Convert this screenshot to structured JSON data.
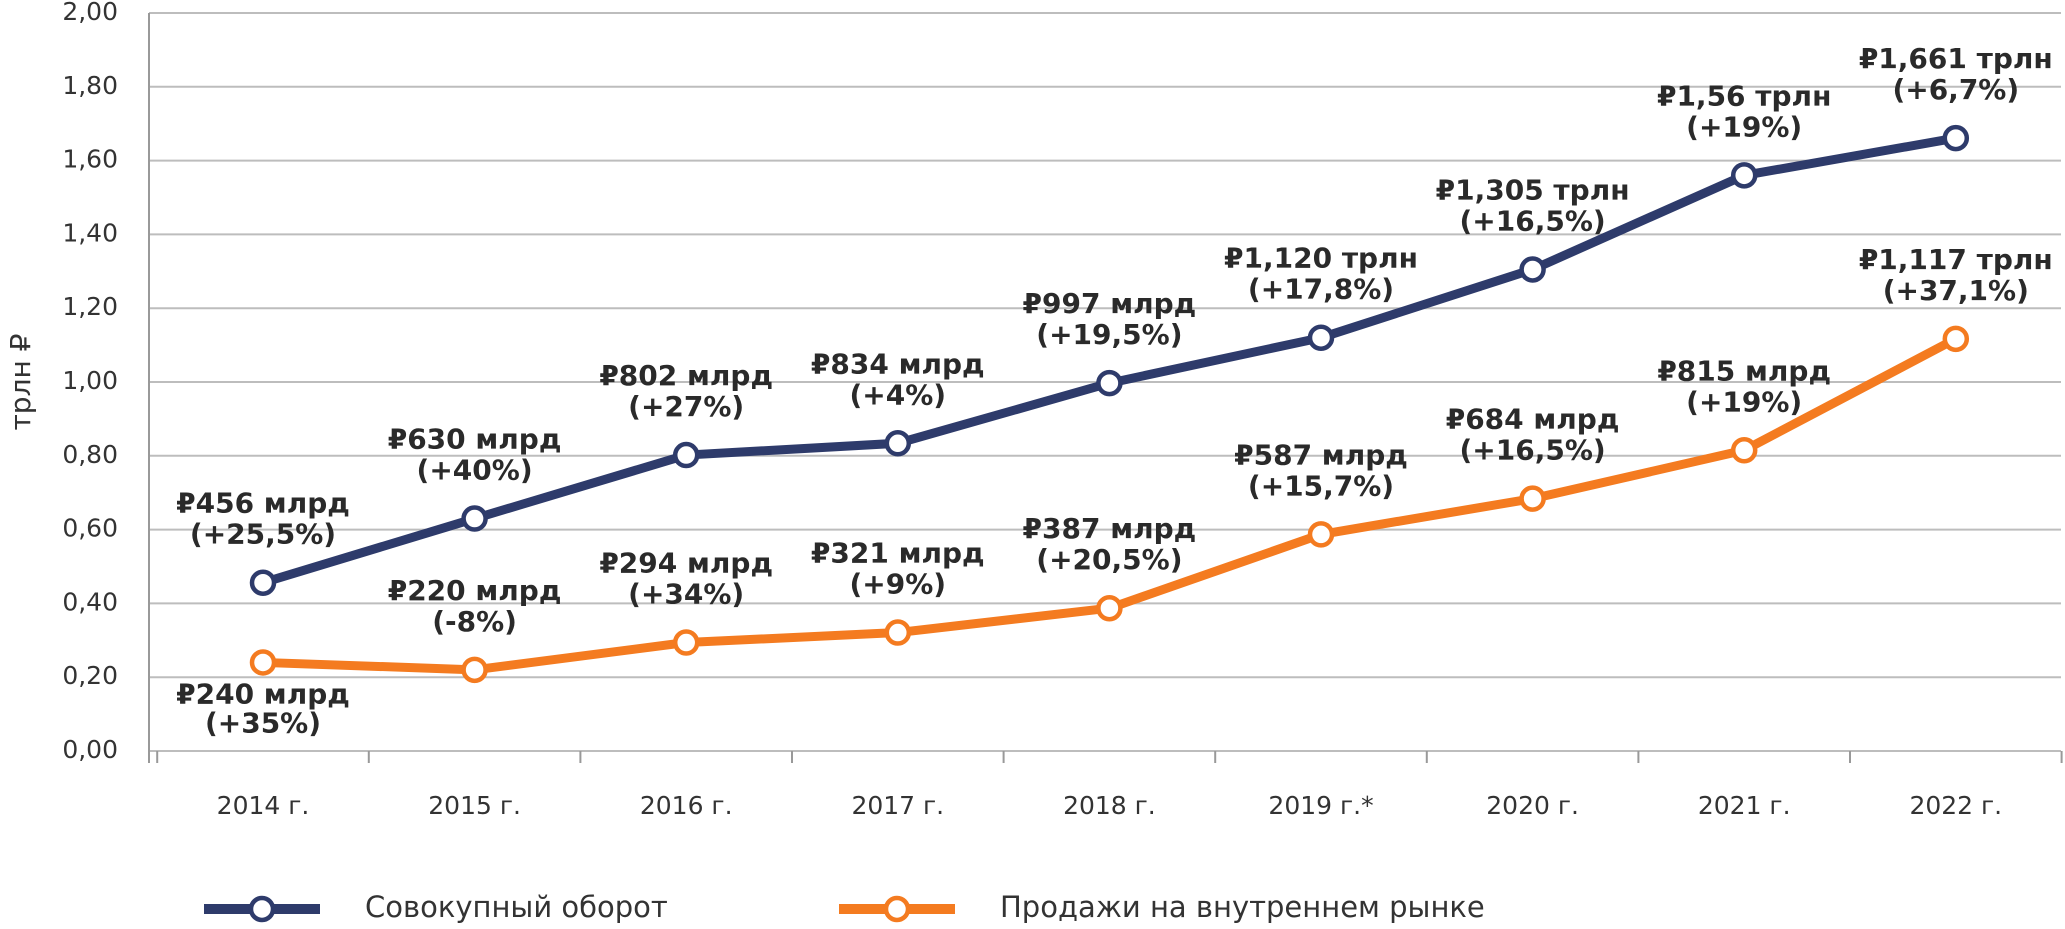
{
  "chart_data": {
    "type": "line",
    "y_label": "трлн ₽",
    "categories": [
      "2014 г.",
      "2015 г.",
      "2016 г.",
      "2017 г.",
      "2018 г.",
      "2019 г.*",
      "2020 г.",
      "2021 г.",
      "2022 г."
    ],
    "series": [
      {
        "name": "Совокупный оборот",
        "color": "#2e3b6b",
        "values": [
          0.456,
          0.63,
          0.802,
          0.834,
          0.997,
          1.12,
          1.305,
          1.56,
          1.661
        ],
        "value_labels": [
          [
            "₽456 млрд",
            "(+25,5%)"
          ],
          [
            "₽630 млрд",
            "(+40%)"
          ],
          [
            "₽802 млрд",
            "(+27%)"
          ],
          [
            "₽834 млрд",
            "(+4%)"
          ],
          [
            "₽997 млрд",
            "(+19,5%)"
          ],
          [
            "₽1,120 трлн",
            "(+17,8%)"
          ],
          [
            "₽1,305 трлн",
            "(+16,5%)"
          ],
          [
            "₽1,56 трлн",
            "(+19%)"
          ],
          [
            "₽1,661 трлн",
            "(+6,7%)"
          ]
        ]
      },
      {
        "name": "Продажи на внутреннем рынке",
        "color": "#f47b20",
        "values": [
          0.24,
          0.22,
          0.294,
          0.321,
          0.387,
          0.587,
          0.684,
          0.815,
          1.117
        ],
        "value_labels": [
          [
            "₽240 млрд",
            "(+35%)"
          ],
          [
            "₽220 млрд",
            "(-8%)"
          ],
          [
            "₽294 млрд",
            "(+34%)"
          ],
          [
            "₽321 млрд",
            "(+9%)"
          ],
          [
            "₽387 млрд",
            "(+20,5%)"
          ],
          [
            "₽587 млрд",
            "(+15,7%)"
          ],
          [
            "₽684 млрд",
            "(+16,5%)"
          ],
          [
            "₽815 млрд",
            "(+19%)"
          ],
          [
            "₽1,117 трлн",
            "(+37,1%)"
          ]
        ]
      }
    ],
    "ylim": [
      0,
      2
    ],
    "yticks": [
      {
        "value": 0,
        "label": "0,00"
      },
      {
        "value": 0.2,
        "label": "0,20"
      },
      {
        "value": 0.4,
        "label": "0,40"
      },
      {
        "value": 0.6,
        "label": "0,60"
      },
      {
        "value": 0.8,
        "label": "0,80"
      },
      {
        "value": 1,
        "label": "1,00"
      },
      {
        "value": 1.2,
        "label": "1,20"
      },
      {
        "value": 1.4,
        "label": "1,40"
      },
      {
        "value": 1.6,
        "label": "1,60"
      },
      {
        "value": 1.8,
        "label": "1,80"
      },
      {
        "value": 2,
        "label": "2,00"
      }
    ],
    "grid": true,
    "legend": "bottom"
  }
}
